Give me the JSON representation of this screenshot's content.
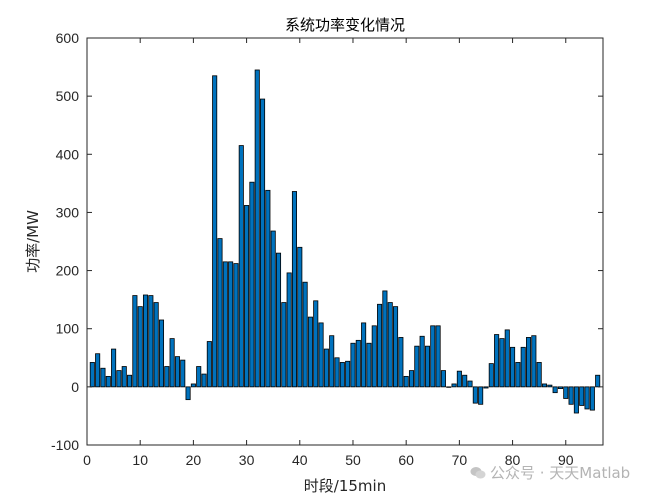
{
  "chart_data": {
    "type": "bar",
    "title": "系统功率变化情况",
    "xlabel": "时段/15min",
    "ylabel": "功率/MW",
    "xlim": [
      0,
      97
    ],
    "ylim": [
      -100,
      600
    ],
    "xticks": [
      0,
      10,
      20,
      30,
      40,
      50,
      60,
      70,
      80,
      90
    ],
    "yticks": [
      -100,
      0,
      100,
      200,
      300,
      400,
      500,
      600
    ],
    "grid": false,
    "bar_color": "#0072BD",
    "edge_color": "#000000",
    "x": [
      1,
      2,
      3,
      4,
      5,
      6,
      7,
      8,
      9,
      10,
      11,
      12,
      13,
      14,
      15,
      16,
      17,
      18,
      19,
      20,
      21,
      22,
      23,
      24,
      25,
      26,
      27,
      28,
      29,
      30,
      31,
      32,
      33,
      34,
      35,
      36,
      37,
      38,
      39,
      40,
      41,
      42,
      43,
      44,
      45,
      46,
      47,
      48,
      49,
      50,
      51,
      52,
      53,
      54,
      55,
      56,
      57,
      58,
      59,
      60,
      61,
      62,
      63,
      64,
      65,
      66,
      67,
      68,
      69,
      70,
      71,
      72,
      73,
      74,
      75,
      76,
      77,
      78,
      79,
      80,
      81,
      82,
      83,
      84,
      85,
      86,
      87,
      88,
      89,
      90,
      91,
      92,
      93,
      94,
      95,
      96
    ],
    "values": [
      42,
      57,
      32,
      18,
      65,
      28,
      35,
      20,
      157,
      138,
      158,
      157,
      145,
      115,
      35,
      83,
      52,
      46,
      -22,
      5,
      35,
      22,
      78,
      535,
      255,
      215,
      215,
      212,
      415,
      312,
      352,
      545,
      495,
      338,
      268,
      230,
      145,
      196,
      336,
      240,
      180,
      120,
      148,
      110,
      65,
      88,
      50,
      42,
      44,
      75,
      80,
      110,
      75,
      105,
      142,
      165,
      145,
      138,
      85,
      18,
      28,
      70,
      87,
      70,
      105,
      105,
      28,
      0,
      5,
      27,
      20,
      10,
      -28,
      -30,
      -2,
      40,
      90,
      83,
      98,
      68,
      42,
      68,
      85,
      88,
      42,
      5,
      3,
      -10,
      -3,
      -20,
      -30,
      -45,
      -32,
      -38,
      -40,
      20
    ]
  },
  "watermark": {
    "text": "公众号 · 天天Matlab"
  }
}
